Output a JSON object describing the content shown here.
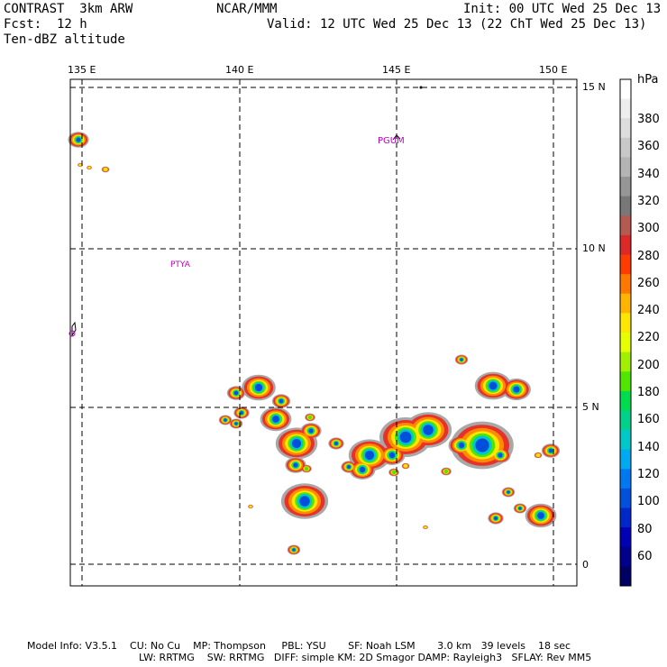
{
  "header": {
    "line1_left": "CONTRAST  3km ARW",
    "line1_center": "NCAR/MMM",
    "line1_right": "Init: 00 UTC Wed 25 Dec 13",
    "line2_left": "Fcst:  12 h",
    "line2_right": "Valid: 12 UTC Wed 25 Dec 13 (22 ChT Wed 25 Dec 13)",
    "line3_left": "Ten-dBZ altitude"
  },
  "map": {
    "lon_labels": [
      "135 E",
      "140 E",
      "145 E",
      "150 E"
    ],
    "lat_labels": [
      "15 N",
      "10 N",
      "5 N",
      "0"
    ],
    "stations": [
      "PGUM",
      "PTYA"
    ]
  },
  "colorbar": {
    "unit": "hPa",
    "levels": [
      "380",
      "360",
      "340",
      "320",
      "300",
      "280",
      "260",
      "240",
      "220",
      "200",
      "180",
      "160",
      "140",
      "120",
      "100",
      "80",
      "60"
    ],
    "colors": [
      "#ffffff",
      "#eeeeee",
      "#dddddd",
      "#c8c8c8",
      "#b4b4b4",
      "#969696",
      "#787878",
      "#b45a50",
      "#dc2828",
      "#ff3c00",
      "#ff7800",
      "#ffb400",
      "#ffe600",
      "#e6ff00",
      "#a0f000",
      "#50e600",
      "#00dc50",
      "#00d28c",
      "#00c8c8",
      "#00aaf0",
      "#0078f0",
      "#0050dc",
      "#0028c8",
      "#0000b4",
      "#00008c",
      "#000064"
    ]
  },
  "footer": {
    "line1": "Model Info: V3.5.1    CU: No Cu    MP: Thompson     PBL: YSU       SF: Noah LSM       3.0 km   39 levels    18 sec",
    "line2": "LW: RRTMG    SW: RRTMG   DIFF: simple KM: 2D Smagor DAMP: Rayleigh3   SFLAY: Rev MM5"
  }
}
